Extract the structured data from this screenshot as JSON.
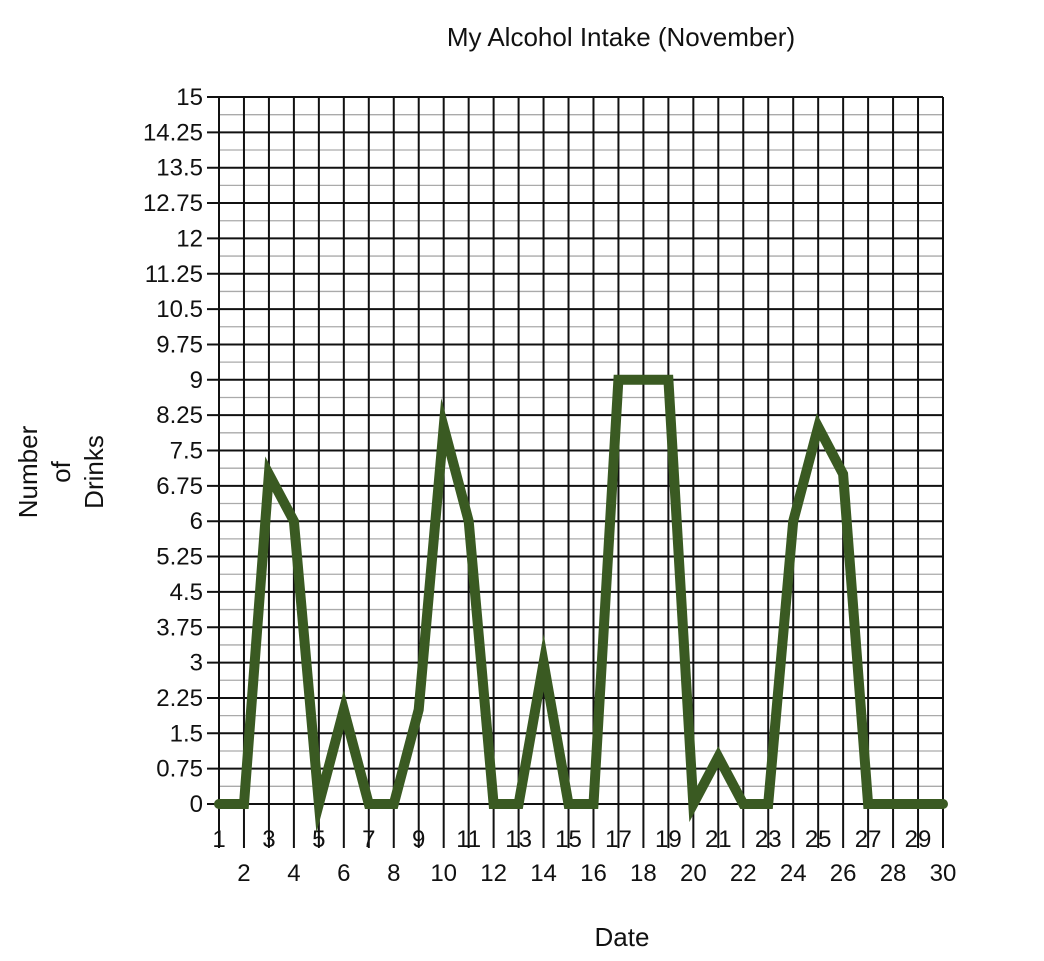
{
  "chart_data": {
    "type": "line",
    "title": "My Alcohol Intake (November)",
    "xlabel": "Date",
    "ylabel": "Number of Drinks",
    "ylabel_lines": [
      "Number",
      "of",
      "Drinks"
    ],
    "x": [
      1,
      2,
      3,
      4,
      5,
      6,
      7,
      8,
      9,
      10,
      11,
      12,
      13,
      14,
      15,
      16,
      17,
      18,
      19,
      20,
      21,
      22,
      23,
      24,
      25,
      26,
      27,
      28,
      29,
      30
    ],
    "series": [
      {
        "values": [
          0,
          0,
          7,
          6,
          0,
          2,
          0,
          0,
          2,
          8,
          6,
          0,
          0,
          3,
          0,
          0,
          9,
          9,
          9,
          0,
          1,
          0,
          0,
          6,
          8,
          7,
          0,
          0,
          0,
          0
        ]
      }
    ],
    "x_tick_labels": [
      "1",
      "2",
      "3",
      "4",
      "5",
      "6",
      "7",
      "8",
      "9",
      "10",
      "11",
      "12",
      "13",
      "14",
      "15",
      "16",
      "17",
      "18",
      "19",
      "20",
      "21",
      "22",
      "23",
      "24",
      "25",
      "26",
      "27",
      "28",
      "29",
      "30"
    ],
    "y_tick_labels": [
      "0",
      "0.75",
      "1.5",
      "2.25",
      "3",
      "3.75",
      "4.5",
      "5.25",
      "6",
      "6.75",
      "7.5",
      "8.25",
      "9",
      "9.75",
      "10.5",
      "11.25",
      "12",
      "12.75",
      "13.5",
      "14.25",
      "15"
    ],
    "y_ticks": [
      0,
      0.75,
      1.5,
      2.25,
      3,
      3.75,
      4.5,
      5.25,
      6,
      6.75,
      7.5,
      8.25,
      9,
      9.75,
      10.5,
      11.25,
      12,
      12.75,
      13.5,
      14.25,
      15
    ],
    "xlim": [
      1,
      30
    ],
    "ylim": [
      0,
      15
    ],
    "minor_grid_step_y": 0.375,
    "grid": true,
    "legend": "none",
    "colors": {
      "line": "#3a5a22",
      "major_grid": "#111111",
      "minor_grid": "#aaaaaa"
    }
  }
}
